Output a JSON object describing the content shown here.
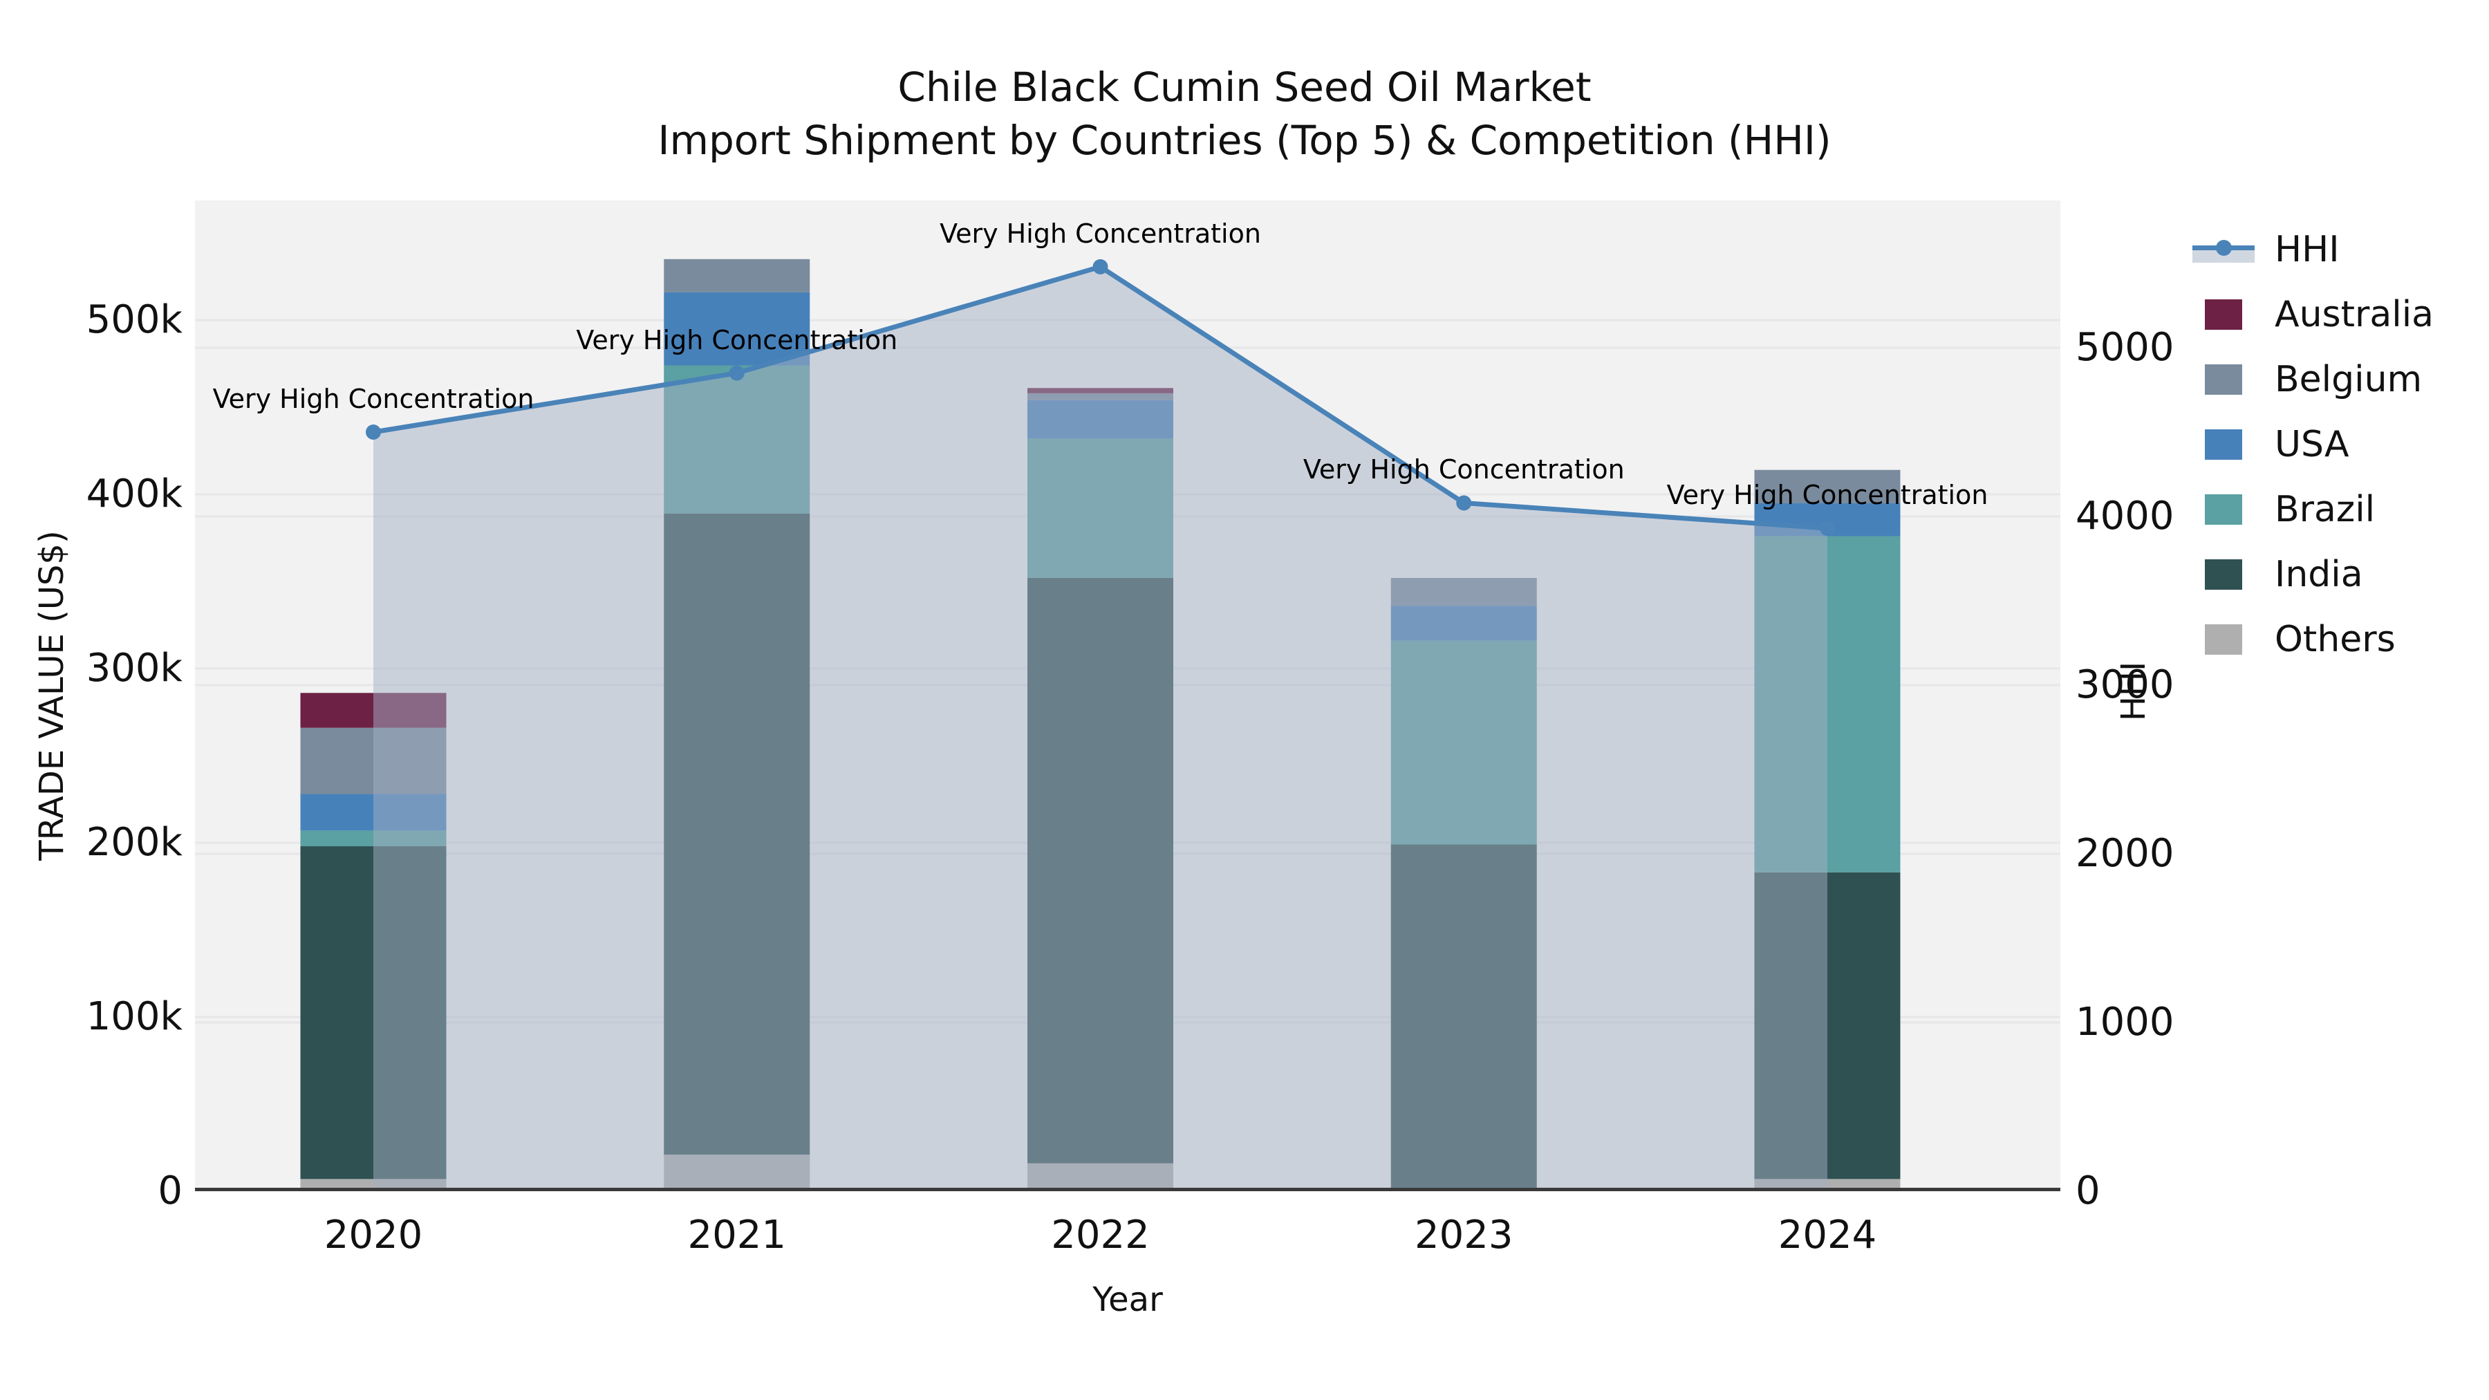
{
  "title": {
    "line1": "Chile Black Cumin Seed Oil Market",
    "line2": "Import Shipment by Countries (Top 5) & Competition (HHI)"
  },
  "axes": {
    "y_left": {
      "label": "TRADE VALUE (US$)",
      "ticks": [
        "0",
        "100k",
        "200k",
        "300k",
        "400k",
        "500k"
      ]
    },
    "y_right": {
      "label": "HHI",
      "ticks": [
        "0",
        "1000",
        "2000",
        "3000",
        "4000",
        "5000"
      ]
    },
    "x": {
      "label": "Year",
      "ticks": [
        "2020",
        "2021",
        "2022",
        "2023",
        "2024"
      ]
    }
  },
  "legend": {
    "items": [
      {
        "label": "HHI",
        "kind": "line",
        "color": "#4983B8",
        "band": "rgba(164,175,195,0.5)"
      },
      {
        "label": "Australia",
        "kind": "swatch",
        "color": "#6D2144"
      },
      {
        "label": "Belgium",
        "kind": "swatch",
        "color": "#7A8B9D"
      },
      {
        "label": "USA",
        "kind": "swatch",
        "color": "#4781BA"
      },
      {
        "label": "Brazil",
        "kind": "swatch",
        "color": "#5BA0A2"
      },
      {
        "label": "India",
        "kind": "swatch",
        "color": "#2F5151"
      },
      {
        "label": "Others",
        "kind": "swatch",
        "color": "#AFAFAF"
      }
    ]
  },
  "annotation_text": "Very High Concentration",
  "colors": {
    "plot_background": "#F2F2F3",
    "gridline": "#E7E7E8",
    "axis_line": "#3A3A3A",
    "hhi_line": "#4983B8",
    "hhi_fill": "rgba(164,175,195,0.5)"
  },
  "chart_data": {
    "type": "combo: stacked bar + line (dual axis)",
    "title": "Chile Black Cumin Seed Oil Market - Import Shipment by Countries (Top 5) & Competition (HHI)",
    "categories": [
      "2020",
      "2021",
      "2022",
      "2023",
      "2024"
    ],
    "xlabel": "Year",
    "stack_order_bottom_to_top": [
      "Others",
      "India",
      "Brazil",
      "USA",
      "Belgium",
      "Australia"
    ],
    "bar_series": [
      {
        "name": "Others",
        "color": "#AFAFAF",
        "values": [
          7000,
          21000,
          16000,
          2000,
          7000
        ]
      },
      {
        "name": "India",
        "color": "#2F5151",
        "values": [
          191000,
          368000,
          336000,
          197000,
          176000
        ]
      },
      {
        "name": "Brazil",
        "color": "#5BA0A2",
        "values": [
          9000,
          85000,
          80000,
          117000,
          193000
        ]
      },
      {
        "name": "USA",
        "color": "#4781BA",
        "values": [
          21000,
          42000,
          22000,
          20000,
          19000
        ]
      },
      {
        "name": "Belgium",
        "color": "#7A8B9D",
        "values": [
          38000,
          19000,
          4000,
          16000,
          19000
        ]
      },
      {
        "name": "Australia",
        "color": "#6D2144",
        "values": [
          20000,
          0,
          3000,
          0,
          0
        ]
      }
    ],
    "bar_totals": [
      286000,
      535000,
      461000,
      352000,
      414000
    ],
    "line_series": {
      "name": "HHI",
      "axis": "right",
      "color": "#4983B8",
      "area_fill": "rgba(164,175,195,0.5)",
      "marker": "circle",
      "values": [
        4500,
        4850,
        5480,
        4080,
        3930
      ]
    },
    "point_annotations": [
      "Very High Concentration",
      "Very High Concentration",
      "Very High Concentration",
      "Very High Concentration",
      "Very High Concentration"
    ],
    "left_axis": {
      "label": "TRADE VALUE (US$)",
      "tick_values": [
        0,
        100000,
        200000,
        300000,
        400000,
        500000
      ],
      "range": [
        0,
        568650
      ]
    },
    "right_axis": {
      "label": "HHI",
      "tick_values": [
        0,
        1000,
        2000,
        3000,
        4000,
        5000
      ],
      "range": [
        0,
        5873
      ]
    },
    "grid": true,
    "legend_position": "outside upper right"
  }
}
